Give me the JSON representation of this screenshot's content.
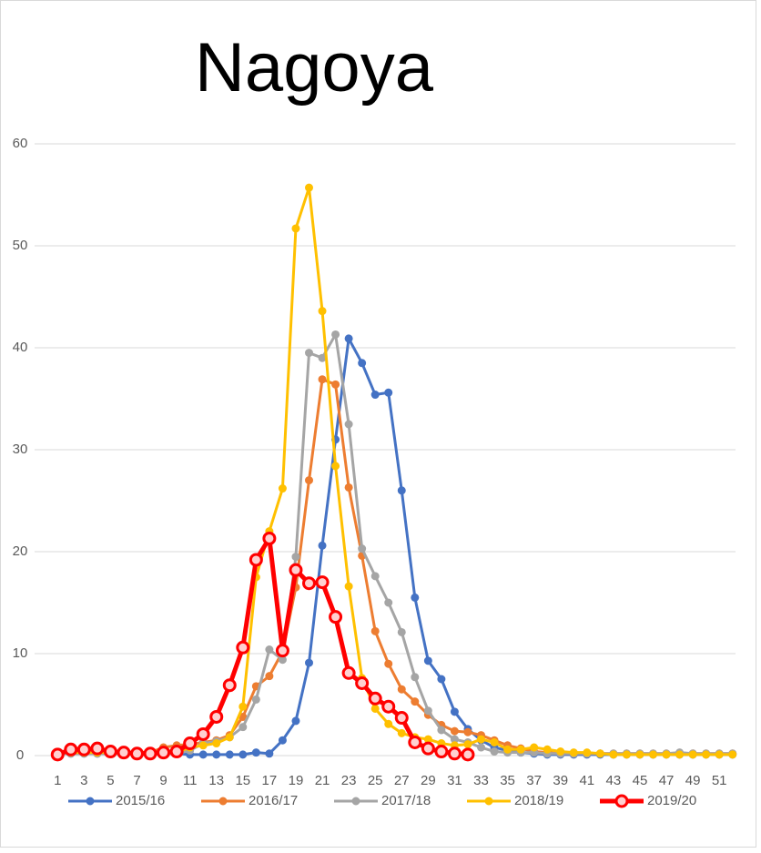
{
  "chart_data": {
    "type": "line",
    "title": "Nagoya",
    "x": [
      1,
      2,
      3,
      4,
      5,
      6,
      7,
      8,
      9,
      10,
      11,
      12,
      13,
      14,
      15,
      16,
      17,
      18,
      19,
      20,
      21,
      22,
      23,
      24,
      25,
      26,
      27,
      28,
      29,
      30,
      31,
      32,
      33,
      34,
      35,
      36,
      37,
      38,
      39,
      40,
      41,
      42,
      43,
      44,
      45,
      46,
      47,
      48,
      49,
      50,
      51,
      52
    ],
    "xlim": [
      0.5,
      52.5
    ],
    "xticks": [
      1,
      3,
      5,
      7,
      9,
      11,
      13,
      15,
      17,
      19,
      21,
      23,
      25,
      27,
      29,
      31,
      33,
      35,
      37,
      39,
      41,
      43,
      45,
      47,
      49,
      51
    ],
    "ylim": [
      0,
      60
    ],
    "yticks": [
      0,
      10,
      20,
      30,
      40,
      50,
      60
    ],
    "grid": true,
    "legend": "bottom",
    "series": [
      {
        "name": "2015/16",
        "color": "#4472c4",
        "values": [
          0.2,
          0.2,
          0.2,
          0.2,
          0.2,
          0.2,
          0.2,
          0.2,
          0.2,
          0.2,
          0.1,
          0.1,
          0.1,
          0.1,
          0.1,
          0.3,
          0.2,
          1.5,
          3.4,
          9.1,
          20.6,
          31,
          40.9,
          38.5,
          35.4,
          35.6,
          26,
          15.5,
          9.3,
          7.5,
          4.3,
          2.6,
          1.5,
          0.8,
          0.5,
          0.3,
          0.2,
          0.1,
          0.1,
          0.1,
          0.1,
          0.1,
          0.1,
          0.1,
          0.1,
          0.1,
          0.1,
          0.1,
          0.1,
          0.1,
          0.1,
          0.1
        ]
      },
      {
        "name": "2016/17",
        "color": "#ed7d31",
        "values": [
          0.3,
          0.3,
          0.3,
          0.3,
          0.3,
          0.3,
          0.3,
          0.3,
          0.8,
          1,
          1.1,
          1.3,
          1.5,
          2,
          3.8,
          6.8,
          7.8,
          10.2,
          16.5,
          27,
          36.9,
          36.4,
          26.3,
          19.6,
          12.2,
          9,
          6.5,
          5.3,
          4,
          3,
          2.4,
          2.3,
          2,
          1.5,
          1,
          0.7,
          0.4,
          0.3,
          0.2,
          0.2,
          0.2,
          0.2,
          0.2,
          0.2,
          0.2,
          0.2,
          0.2,
          0.2,
          0.2,
          0.2,
          0.2,
          0.2
        ]
      },
      {
        "name": "2017/18",
        "color": "#a5a5a5",
        "values": [
          0.2,
          0.2,
          0.2,
          0.2,
          0.2,
          0.2,
          0.2,
          0.2,
          0.2,
          0.2,
          0.5,
          1.2,
          1.4,
          1.8,
          2.8,
          5.5,
          10.4,
          9.4,
          19.5,
          39.5,
          39,
          41.3,
          32.5,
          20.3,
          17.6,
          15,
          12.1,
          7.7,
          4.4,
          2.5,
          1.6,
          1.3,
          0.8,
          0.4,
          0.3,
          0.3,
          0.3,
          0.2,
          0.2,
          0.2,
          0.2,
          0.2,
          0.2,
          0.2,
          0.2,
          0.2,
          0.2,
          0.3,
          0.2,
          0.2,
          0.2,
          0.2
        ]
      },
      {
        "name": "2018/19",
        "color": "#ffc000",
        "values": [
          0.3,
          0.3,
          0.3,
          0.3,
          0.3,
          0.3,
          0.3,
          0.3,
          0.3,
          0.3,
          0.8,
          1,
          1.2,
          1.8,
          4.8,
          17.5,
          22,
          26.2,
          51.7,
          55.7,
          43.6,
          28.4,
          16.6,
          7.6,
          4.6,
          3.1,
          2.2,
          1.8,
          1.6,
          1.2,
          1,
          1.1,
          1.6,
          1.3,
          0.6,
          0.6,
          0.8,
          0.6,
          0.4,
          0.3,
          0.3,
          0.2,
          0.1,
          0.1,
          0.1,
          0.1,
          0.1,
          0.1,
          0.1,
          0.1,
          0.1,
          0.1
        ]
      },
      {
        "name": "2019/20",
        "color": "#ff0000",
        "values": [
          0.1,
          0.6,
          0.6,
          0.7,
          0.4,
          0.3,
          0.2,
          0.2,
          0.3,
          0.4,
          1.2,
          2.1,
          3.8,
          6.9,
          10.6,
          19.2,
          21.3,
          10.3,
          18.2,
          16.9,
          17,
          13.6,
          8.1,
          7.1,
          5.6,
          4.8,
          3.7,
          1.3,
          0.7,
          0.4,
          0.2,
          0.1,
          null,
          null,
          null,
          null,
          null,
          null,
          null,
          null,
          null,
          null,
          null,
          null,
          null,
          null,
          null,
          null,
          null,
          null,
          null,
          null
        ]
      }
    ]
  }
}
